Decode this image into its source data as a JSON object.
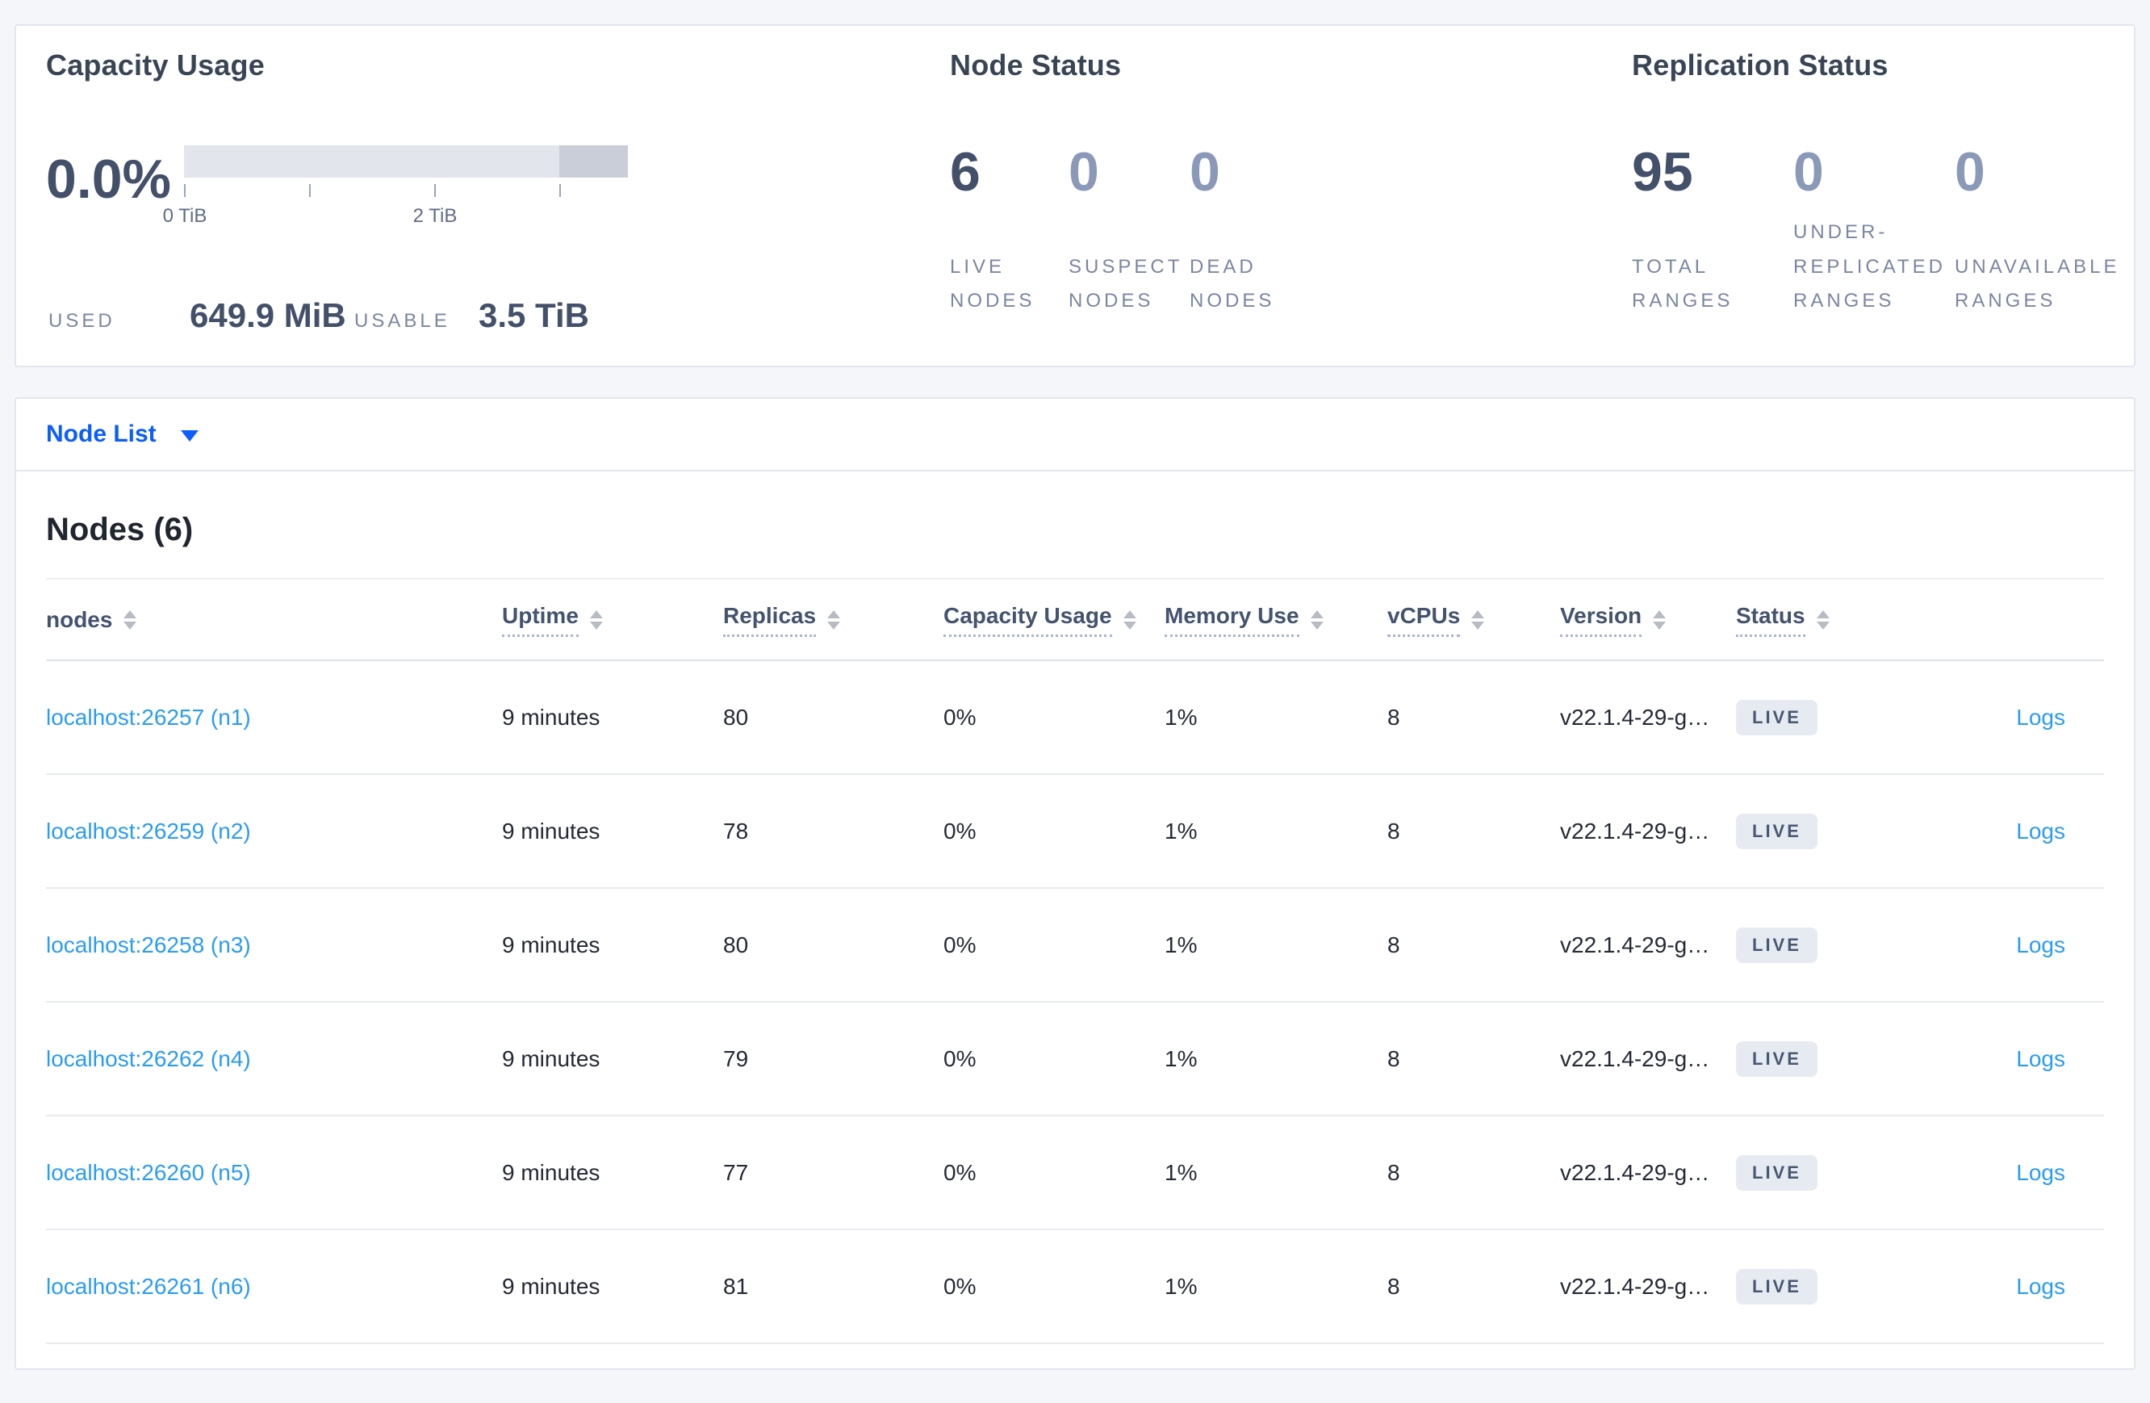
{
  "summary": {
    "capacity": {
      "title": "Capacity Usage",
      "percent": "0.0%",
      "tick_labels": [
        "0 TiB",
        "2 TiB"
      ],
      "used_label": "USED",
      "used_value": "649.9 MiB",
      "usable_label": "USABLE",
      "usable_value": "3.5 TiB"
    },
    "node_status": {
      "title": "Node Status",
      "stats": [
        {
          "value": "6",
          "label": "LIVE NODES"
        },
        {
          "value": "0",
          "label": "SUSPECT NODES"
        },
        {
          "value": "0",
          "label": "DEAD NODES"
        }
      ]
    },
    "replication_status": {
      "title": "Replication Status",
      "stats": [
        {
          "value": "95",
          "label": "TOTAL RANGES"
        },
        {
          "value": "0",
          "label": "UNDER-REPLICATED RANGES"
        },
        {
          "value": "0",
          "label": "UNAVAILABLE RANGES"
        }
      ]
    }
  },
  "view_selector": {
    "label": "Node List"
  },
  "table": {
    "title": "Nodes (6)",
    "columns": [
      {
        "label": "nodes"
      },
      {
        "label": "Uptime"
      },
      {
        "label": "Replicas"
      },
      {
        "label": "Capacity Usage"
      },
      {
        "label": "Memory Use"
      },
      {
        "label": "vCPUs"
      },
      {
        "label": "Version"
      },
      {
        "label": "Status"
      }
    ],
    "rows": [
      {
        "node": "localhost:26257 (n1)",
        "uptime": "9 minutes",
        "replicas": "80",
        "capacity": "0%",
        "memory": "1%",
        "vcpus": "8",
        "version": "v22.1.4-29-g…",
        "status": "LIVE",
        "logs": "Logs"
      },
      {
        "node": "localhost:26259 (n2)",
        "uptime": "9 minutes",
        "replicas": "78",
        "capacity": "0%",
        "memory": "1%",
        "vcpus": "8",
        "version": "v22.1.4-29-g…",
        "status": "LIVE",
        "logs": "Logs"
      },
      {
        "node": "localhost:26258 (n3)",
        "uptime": "9 minutes",
        "replicas": "80",
        "capacity": "0%",
        "memory": "1%",
        "vcpus": "8",
        "version": "v22.1.4-29-g…",
        "status": "LIVE",
        "logs": "Logs"
      },
      {
        "node": "localhost:26262 (n4)",
        "uptime": "9 minutes",
        "replicas": "79",
        "capacity": "0%",
        "memory": "1%",
        "vcpus": "8",
        "version": "v22.1.4-29-g…",
        "status": "LIVE",
        "logs": "Logs"
      },
      {
        "node": "localhost:26260 (n5)",
        "uptime": "9 minutes",
        "replicas": "77",
        "capacity": "0%",
        "memory": "1%",
        "vcpus": "8",
        "version": "v22.1.4-29-g…",
        "status": "LIVE",
        "logs": "Logs"
      },
      {
        "node": "localhost:26261 (n6)",
        "uptime": "9 minutes",
        "replicas": "81",
        "capacity": "0%",
        "memory": "1%",
        "vcpus": "8",
        "version": "v22.1.4-29-g…",
        "status": "LIVE",
        "logs": "Logs"
      }
    ]
  },
  "colors": {
    "selector_blue": "#0b5dff",
    "link_blue": "#2b9cf3",
    "badge_bg": "#e6ebf2",
    "badge_text": "#475872",
    "bar_light": "#e2e5ec",
    "bar_dark": "#c9ced9",
    "page_bg": "#f4f6f9"
  }
}
